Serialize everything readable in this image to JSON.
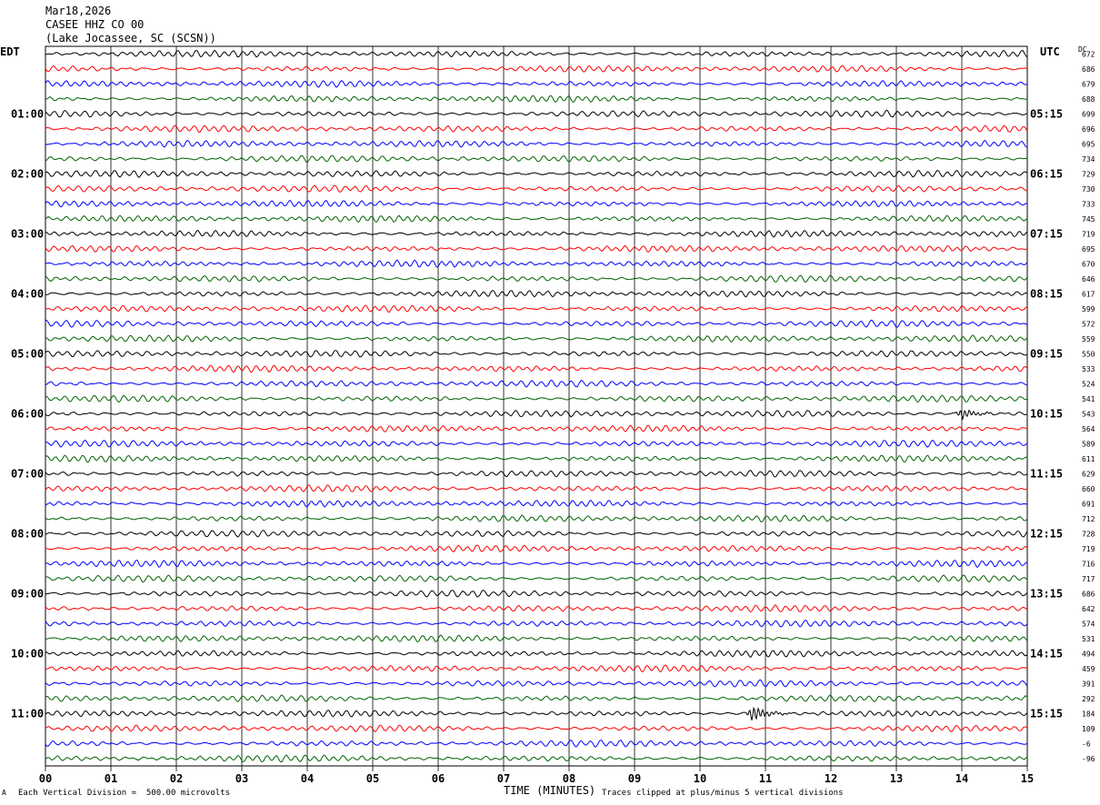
{
  "header": {
    "date": "Mar18,2026",
    "station": "CASEE HHZ CO 00",
    "location": "(Lake Jocassee, SC (SCSN))"
  },
  "left_zone": "EDT",
  "right_zone": "UTC",
  "dc_label": "DC",
  "footer": {
    "scale_note": "Each Vertical Division =  500.00 microvolts",
    "xlabel": "TIME (MINUTES)",
    "clip_note": "Traces clipped at plus/minus 5 vertical divisions",
    "corner_mark": "A"
  },
  "chart_data": {
    "type": "line",
    "xlabel": "TIME (MINUTES)",
    "xlim": [
      0,
      15
    ],
    "x_ticks": [
      "00",
      "01",
      "02",
      "03",
      "04",
      "05",
      "06",
      "07",
      "08",
      "09",
      "10",
      "11",
      "12",
      "13",
      "14",
      "15"
    ],
    "rows_per_hour": 4,
    "row_count": 48,
    "trace_colors": [
      "#000000",
      "#ff0000",
      "#0000ff",
      "#006400"
    ],
    "left_hour_labels": [
      "01:00",
      "02:00",
      "03:00",
      "04:00",
      "05:00",
      "06:00",
      "07:00",
      "08:00",
      "09:00",
      "10:00",
      "11:00"
    ],
    "right_hour_labels": [
      "05:15",
      "06:15",
      "07:15",
      "08:15",
      "09:15",
      "10:15",
      "11:15",
      "12:15",
      "13:15",
      "14:15",
      "15:15"
    ],
    "dc_offsets": [
      "672",
      "686",
      "679",
      "688",
      "699",
      "696",
      "695",
      "734",
      "729",
      "730",
      "733",
      "745",
      "719",
      "695",
      "670",
      "646",
      "617",
      "599",
      "572",
      "559",
      "550",
      "533",
      "524",
      "541",
      "543",
      "564",
      "589",
      "611",
      "629",
      "660",
      "691",
      "712",
      "728",
      "719",
      "716",
      "717",
      "686",
      "642",
      "574",
      "531",
      "494",
      "459",
      "391",
      "292",
      "184",
      "109",
      "-6",
      "-96"
    ],
    "events": [
      {
        "row": 24,
        "minute": 14.0,
        "amplitude": "medium"
      },
      {
        "row": 44,
        "minute": 10.8,
        "amplitude": "large"
      }
    ]
  }
}
